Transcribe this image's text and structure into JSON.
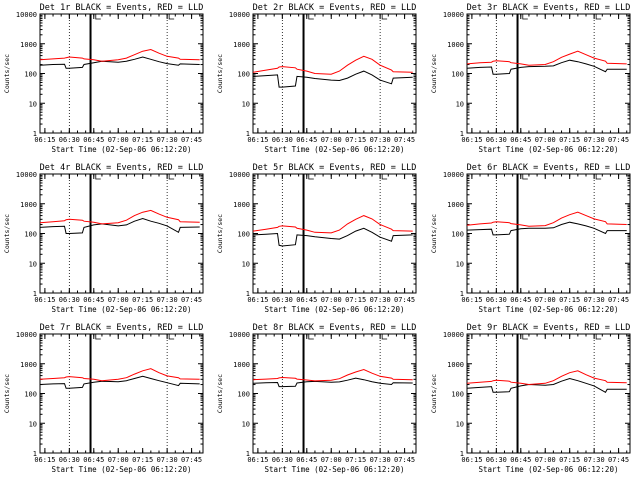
{
  "shared": {
    "ylabel": "Counts/sec",
    "xlabel": "Start Time (02-Sep-06 06:12:20)",
    "x_ticks": [
      "06:15",
      "06:30",
      "06:45",
      "07:00",
      "07:15",
      "07:30",
      "07:45"
    ],
    "y_ticks": [
      "1",
      "10",
      "100",
      "1000",
      "10000"
    ],
    "legend_text": "BLACK = Events, RED = LLD",
    "colors": {
      "events": "#000000",
      "lld": "#ff0000",
      "axes": "#000000",
      "background": "#ffffff"
    }
  },
  "chart_data": [
    {
      "type": "line",
      "title": "Det 1r BLACK = Events, RED = LLD",
      "xlabel": "Start Time (02-Sep-06 06:12:20)",
      "ylabel": "Counts/sec",
      "yscale": "log",
      "ylim": [
        1,
        10000
      ],
      "xlim": [
        "06:12",
        "07:52"
      ],
      "markers": {
        "dotted": [
          "06:30",
          "07:30"
        ],
        "solid": [
          "06:43"
        ]
      },
      "categories": [
        "06:12",
        "06:20",
        "06:27",
        "06:28",
        "06:30",
        "06:38",
        "06:39",
        "06:45",
        "06:50",
        "07:00",
        "07:05",
        "07:10",
        "07:15",
        "07:20",
        "07:25",
        "07:30",
        "07:37",
        "07:38",
        "07:50"
      ],
      "series": [
        {
          "name": "Events",
          "values": [
            190,
            200,
            205,
            150,
            150,
            160,
            200,
            230,
            260,
            240,
            260,
            300,
            360,
            300,
            250,
            215,
            190,
            210,
            200
          ]
        },
        {
          "name": "LLD",
          "values": [
            290,
            310,
            330,
            340,
            360,
            330,
            310,
            290,
            260,
            290,
            330,
            430,
            560,
            640,
            480,
            380,
            330,
            300,
            290
          ]
        }
      ]
    },
    {
      "type": "line",
      "title": "Det 2r BLACK = Events, RED = LLD",
      "xlabel": "Start Time (02-Sep-06 06:12:20)",
      "ylabel": "Counts/sec",
      "yscale": "log",
      "ylim": [
        1,
        10000
      ],
      "xlim": [
        "06:12",
        "07:52"
      ],
      "markers": {
        "dotted": [
          "06:30",
          "07:30"
        ],
        "solid": [
          "06:43"
        ]
      },
      "categories": [
        "06:12",
        "06:20",
        "06:27",
        "06:28",
        "06:30",
        "06:38",
        "06:39",
        "06:45",
        "06:50",
        "07:00",
        "07:05",
        "07:10",
        "07:15",
        "07:20",
        "07:25",
        "07:30",
        "07:37",
        "07:38",
        "07:50"
      ],
      "series": [
        {
          "name": "Events",
          "values": [
            80,
            85,
            90,
            35,
            35,
            38,
            80,
            75,
            68,
            60,
            58,
            70,
            95,
            120,
            90,
            60,
            45,
            70,
            75
          ]
        },
        {
          "name": "LLD",
          "values": [
            110,
            130,
            150,
            165,
            170,
            155,
            140,
            120,
            100,
            95,
            120,
            190,
            280,
            380,
            300,
            190,
            130,
            115,
            110
          ]
        }
      ]
    },
    {
      "type": "line",
      "title": "Det 3r BLACK = Events, RED = LLD",
      "xlabel": "Start Time (02-Sep-06 06:12:20)",
      "ylabel": "Counts/sec",
      "yscale": "log",
      "ylim": [
        1,
        10000
      ],
      "xlim": [
        "06:12",
        "07:52"
      ],
      "markers": {
        "dotted": [
          "06:30",
          "07:30"
        ],
        "solid": [
          "06:43"
        ]
      },
      "categories": [
        "06:12",
        "06:20",
        "06:27",
        "06:28",
        "06:30",
        "06:38",
        "06:39",
        "06:45",
        "06:50",
        "07:00",
        "07:05",
        "07:10",
        "07:15",
        "07:20",
        "07:25",
        "07:30",
        "07:37",
        "07:38",
        "07:50"
      ],
      "series": [
        {
          "name": "Events",
          "values": [
            150,
            160,
            165,
            95,
            95,
            100,
            140,
            160,
            170,
            175,
            180,
            230,
            280,
            250,
            210,
            175,
            115,
            140,
            140
          ]
        },
        {
          "name": "LLD",
          "values": [
            210,
            230,
            240,
            260,
            270,
            250,
            230,
            210,
            190,
            200,
            250,
            350,
            450,
            560,
            430,
            330,
            260,
            220,
            210
          ]
        }
      ]
    },
    {
      "type": "line",
      "title": "Det 4r BLACK = Events, RED = LLD",
      "xlabel": "Start Time (02-Sep-06 06:12:20)",
      "ylabel": "Counts/sec",
      "yscale": "log",
      "ylim": [
        1,
        10000
      ],
      "xlim": [
        "06:12",
        "07:52"
      ],
      "markers": {
        "dotted": [
          "06:30",
          "07:30"
        ],
        "solid": [
          "06:43"
        ]
      },
      "categories": [
        "06:12",
        "06:20",
        "06:27",
        "06:28",
        "06:30",
        "06:38",
        "06:39",
        "06:45",
        "06:50",
        "07:00",
        "07:05",
        "07:10",
        "07:15",
        "07:20",
        "07:25",
        "07:30",
        "07:37",
        "07:38",
        "07:50"
      ],
      "series": [
        {
          "name": "Events",
          "values": [
            160,
            170,
            175,
            100,
            100,
            105,
            160,
            195,
            210,
            180,
            195,
            260,
            320,
            260,
            220,
            180,
            110,
            160,
            165
          ]
        },
        {
          "name": "LLD",
          "values": [
            230,
            250,
            270,
            290,
            300,
            280,
            260,
            240,
            210,
            230,
            280,
            400,
            520,
            600,
            450,
            350,
            290,
            250,
            240
          ]
        }
      ]
    },
    {
      "type": "line",
      "title": "Det 5r BLACK = Events, RED = LLD",
      "xlabel": "Start Time (02-Sep-06 06:12:20)",
      "ylabel": "Counts/sec",
      "yscale": "log",
      "ylim": [
        1,
        10000
      ],
      "xlim": [
        "06:12",
        "07:52"
      ],
      "markers": {
        "dotted": [
          "06:30",
          "07:30"
        ],
        "solid": [
          "06:43"
        ]
      },
      "categories": [
        "06:12",
        "06:20",
        "06:27",
        "06:28",
        "06:30",
        "06:38",
        "06:39",
        "06:45",
        "06:50",
        "07:00",
        "07:05",
        "07:10",
        "07:15",
        "07:20",
        "07:25",
        "07:30",
        "07:37",
        "07:38",
        "07:50"
      ],
      "series": [
        {
          "name": "Events",
          "values": [
            90,
            95,
            100,
            40,
            38,
            42,
            90,
            85,
            78,
            68,
            65,
            85,
            120,
            150,
            110,
            75,
            55,
            85,
            90
          ]
        },
        {
          "name": "LLD",
          "values": [
            120,
            140,
            160,
            175,
            180,
            165,
            150,
            130,
            110,
            105,
            130,
            210,
            300,
            400,
            310,
            200,
            140,
            125,
            120
          ]
        }
      ]
    },
    {
      "type": "line",
      "title": "Det 6r BLACK = Events, RED = LLD",
      "xlabel": "Start Time (02-Sep-06 06:12:20)",
      "ylabel": "Counts/sec",
      "yscale": "log",
      "ylim": [
        1,
        10000
      ],
      "xlim": [
        "06:12",
        "07:52"
      ],
      "markers": {
        "dotted": [
          "06:30",
          "07:30"
        ],
        "solid": [
          "06:43"
        ]
      },
      "categories": [
        "06:12",
        "06:20",
        "06:27",
        "06:28",
        "06:30",
        "06:38",
        "06:39",
        "06:45",
        "06:50",
        "07:00",
        "07:05",
        "07:10",
        "07:15",
        "07:20",
        "07:25",
        "07:30",
        "07:37",
        "07:38",
        "07:50"
      ],
      "series": [
        {
          "name": "Events",
          "values": [
            130,
            135,
            140,
            90,
            90,
            95,
            125,
            145,
            150,
            150,
            155,
            200,
            240,
            210,
            180,
            150,
            100,
            125,
            125
          ]
        },
        {
          "name": "LLD",
          "values": [
            190,
            210,
            225,
            240,
            250,
            230,
            215,
            195,
            175,
            185,
            230,
            330,
            430,
            520,
            400,
            310,
            250,
            210,
            200
          ]
        }
      ]
    },
    {
      "type": "line",
      "title": "Det 7r BLACK = Events, RED = LLD",
      "xlabel": "Start Time (02-Sep-06 06:12:20)",
      "ylabel": "Counts/sec",
      "yscale": "log",
      "ylim": [
        1,
        10000
      ],
      "xlim": [
        "06:12",
        "07:52"
      ],
      "markers": {
        "dotted": [
          "06:30",
          "07:30"
        ],
        "solid": [
          "06:43"
        ]
      },
      "categories": [
        "06:12",
        "06:20",
        "06:27",
        "06:28",
        "06:30",
        "06:38",
        "06:39",
        "06:45",
        "06:50",
        "07:00",
        "07:05",
        "07:10",
        "07:15",
        "07:20",
        "07:25",
        "07:30",
        "07:37",
        "07:38",
        "07:50"
      ],
      "series": [
        {
          "name": "Events",
          "values": [
            200,
            210,
            215,
            150,
            150,
            160,
            210,
            240,
            260,
            250,
            270,
            320,
            380,
            320,
            270,
            230,
            185,
            220,
            210
          ]
        },
        {
          "name": "LLD",
          "values": [
            300,
            320,
            340,
            360,
            370,
            340,
            320,
            300,
            270,
            300,
            340,
            450,
            580,
            680,
            500,
            390,
            340,
            310,
            300
          ]
        }
      ]
    },
    {
      "type": "line",
      "title": "Det 8r BLACK = Events, RED = LLD",
      "xlabel": "Start Time (02-Sep-06 06:12:20)",
      "ylabel": "Counts/sec",
      "yscale": "log",
      "ylim": [
        1,
        10000
      ],
      "xlim": [
        "06:12",
        "07:52"
      ],
      "markers": {
        "dotted": [
          "06:30",
          "07:30"
        ],
        "solid": [
          "06:43"
        ]
      },
      "categories": [
        "06:12",
        "06:20",
        "06:27",
        "06:28",
        "06:30",
        "06:38",
        "06:39",
        "06:45",
        "06:50",
        "07:00",
        "07:05",
        "07:10",
        "07:15",
        "07:20",
        "07:25",
        "07:30",
        "07:37",
        "07:38",
        "07:50"
      ],
      "series": [
        {
          "name": "Events",
          "values": [
            220,
            230,
            235,
            170,
            170,
            175,
            225,
            250,
            255,
            240,
            245,
            280,
            330,
            290,
            250,
            220,
            200,
            230,
            225
          ]
        },
        {
          "name": "LLD",
          "values": [
            290,
            305,
            320,
            335,
            345,
            325,
            305,
            285,
            265,
            280,
            315,
            420,
            530,
            640,
            480,
            380,
            330,
            300,
            290
          ]
        }
      ]
    },
    {
      "type": "line",
      "title": "Det 9r BLACK = Events, RED = LLD",
      "xlabel": "Start Time (02-Sep-06 06:12:20)",
      "ylabel": "Counts/sec",
      "yscale": "log",
      "ylim": [
        1,
        10000
      ],
      "xlim": [
        "06:12",
        "07:52"
      ],
      "markers": {
        "dotted": [
          "06:30",
          "07:30"
        ],
        "solid": [
          "06:43"
        ]
      },
      "categories": [
        "06:12",
        "06:20",
        "06:27",
        "06:28",
        "06:30",
        "06:38",
        "06:39",
        "06:45",
        "06:50",
        "07:00",
        "07:05",
        "07:10",
        "07:15",
        "07:20",
        "07:25",
        "07:30",
        "07:37",
        "07:38",
        "07:50"
      ],
      "series": [
        {
          "name": "Events",
          "values": [
            150,
            160,
            170,
            110,
            110,
            115,
            150,
            180,
            200,
            190,
            200,
            260,
            320,
            270,
            220,
            180,
            110,
            140,
            140
          ]
        },
        {
          "name": "LLD",
          "values": [
            220,
            240,
            255,
            270,
            280,
            260,
            240,
            220,
            200,
            220,
            270,
            380,
            500,
            580,
            430,
            330,
            270,
            240,
            230
          ]
        }
      ]
    }
  ]
}
